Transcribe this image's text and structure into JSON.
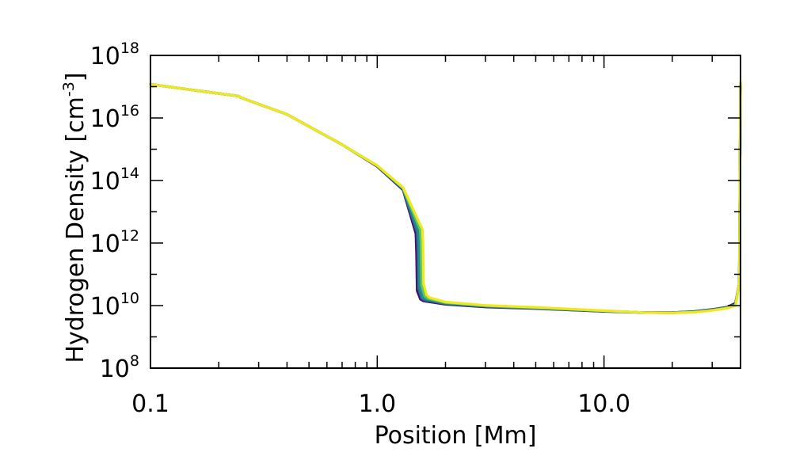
{
  "chart_data": {
    "type": "line",
    "title": "",
    "xlabel": "Position [Mm]",
    "ylabel": "Hydrogen Density [cm",
    "ylabel_unit_exp": "-3",
    "ylabel_close": "]",
    "xscale": "log",
    "yscale": "log",
    "xlim": [
      0.1,
      40
    ],
    "ylim": [
      100000000.0,
      1e+18
    ],
    "x_ticks": [
      {
        "value": 0.1,
        "label": "0.1"
      },
      {
        "value": 1.0,
        "label": "1.0"
      },
      {
        "value": 10.0,
        "label": "10.0"
      }
    ],
    "y_ticks": [
      {
        "value": 100000000.0,
        "base": "10",
        "exp": "8"
      },
      {
        "value": 10000000000.0,
        "base": "10",
        "exp": "10"
      },
      {
        "value": 1000000000000.0,
        "base": "10",
        "exp": "12"
      },
      {
        "value": 100000000000000.0,
        "base": "10",
        "exp": "14"
      },
      {
        "value": 1e+16,
        "base": "10",
        "exp": "16"
      },
      {
        "value": 1e+18,
        "base": "10",
        "exp": "18"
      }
    ],
    "grid": false,
    "legend": "none",
    "series": [
      {
        "color": "#3b0f70",
        "x": [
          0.1,
          0.15,
          0.245,
          0.25,
          0.4,
          0.7,
          1.0,
          1.3,
          1.48,
          1.49,
          1.5,
          1.55,
          1.6,
          2,
          3,
          5,
          10,
          15,
          20,
          25,
          30,
          35,
          38,
          39.5,
          40
        ],
        "y": [
          1.2e+17,
          8e+16,
          5e+16,
          4.5e+16,
          1.3e+16,
          1400000000000000.0,
          280000000000000.0,
          50000000000000.0,
          2000000000000.0,
          500000000000.0,
          30000000000.0,
          16000000000.0,
          14000000000.0,
          11000000000.0,
          9000000000.0,
          8000000000.0,
          6500000000.0,
          6000000000.0,
          6000000000.0,
          6500000000.0,
          7500000000.0,
          9000000000.0,
          12000000000.0,
          50000000000.0,
          1e+17
        ]
      },
      {
        "color": "#31688e",
        "x": [
          0.1,
          0.15,
          0.245,
          0.25,
          0.4,
          0.7,
          1.0,
          1.3,
          1.5,
          1.51,
          1.52,
          1.57,
          1.62,
          2,
          3,
          5,
          10,
          15,
          20,
          25,
          30,
          35,
          38,
          39.5,
          40
        ],
        "y": [
          1.2e+17,
          8e+16,
          5e+16,
          4.5e+16,
          1.3e+16,
          1400000000000000.0,
          290000000000000.0,
          52000000000000.0,
          2200000000000.0,
          600000000000.0,
          35000000000.0,
          17000000000.0,
          15000000000.0,
          11500000000.0,
          9300000000.0,
          8200000000.0,
          6600000000.0,
          6000000000.0,
          6000000000.0,
          6400000000.0,
          7300000000.0,
          8800000000.0,
          11000000000.0,
          50000000000.0,
          1.1e+17
        ]
      },
      {
        "color": "#21918c",
        "x": [
          0.1,
          0.15,
          0.245,
          0.25,
          0.4,
          0.7,
          1.0,
          1.3,
          1.52,
          1.53,
          1.54,
          1.59,
          1.64,
          2,
          3,
          5,
          10,
          15,
          20,
          25,
          30,
          35,
          38,
          39.5,
          40
        ],
        "y": [
          1.2e+17,
          8e+16,
          5e+16,
          4.5e+16,
          1.3e+16,
          1400000000000000.0,
          300000000000000.0,
          55000000000000.0,
          2400000000000.0,
          800000000000.0,
          40000000000.0,
          18000000000.0,
          16000000000.0,
          12000000000.0,
          9600000000.0,
          8400000000.0,
          6700000000.0,
          6000000000.0,
          5900000000.0,
          6300000000.0,
          7200000000.0,
          8600000000.0,
          10500000000.0,
          50000000000.0,
          1.2e+17
        ]
      },
      {
        "color": "#5ec962",
        "x": [
          0.1,
          0.15,
          0.245,
          0.25,
          0.4,
          0.7,
          1.0,
          1.3,
          1.55,
          1.56,
          1.57,
          1.62,
          1.67,
          2,
          3,
          5,
          10,
          15,
          20,
          25,
          30,
          35,
          38,
          39.5,
          40
        ],
        "y": [
          1.2e+17,
          8e+16,
          5e+16,
          4.5e+16,
          1.3e+16,
          1400000000000000.0,
          300000000000000.0,
          57000000000000.0,
          2600000000000.0,
          1000000000000.0,
          45000000000.0,
          20000000000.0,
          17000000000.0,
          12500000000.0,
          9900000000.0,
          8600000000.0,
          6800000000.0,
          6000000000.0,
          5900000000.0,
          6200000000.0,
          7100000000.0,
          8400000000.0,
          10000000000.0,
          50000000000.0,
          1.3e+17
        ]
      },
      {
        "color": "#f0e81c",
        "x": [
          0.1,
          0.15,
          0.245,
          0.25,
          0.4,
          0.7,
          1.0,
          1.3,
          1.58,
          1.59,
          1.6,
          1.65,
          1.7,
          2,
          3,
          5,
          10,
          15,
          20,
          25,
          30,
          35,
          38,
          39.5,
          40
        ],
        "y": [
          1.2e+17,
          8e+16,
          5e+16,
          4.5e+16,
          1.3e+16,
          1400000000000000.0,
          300000000000000.0,
          60000000000000.0,
          2800000000000.0,
          1200000000000.0,
          50000000000.0,
          22000000000.0,
          18000000000.0,
          13000000000.0,
          10200000000.0,
          8800000000.0,
          6900000000.0,
          6000000000.0,
          5800000000.0,
          6100000000.0,
          7000000000.0,
          8200000000.0,
          10000000000.0,
          50000000000.0,
          1.4e+17
        ]
      }
    ]
  }
}
